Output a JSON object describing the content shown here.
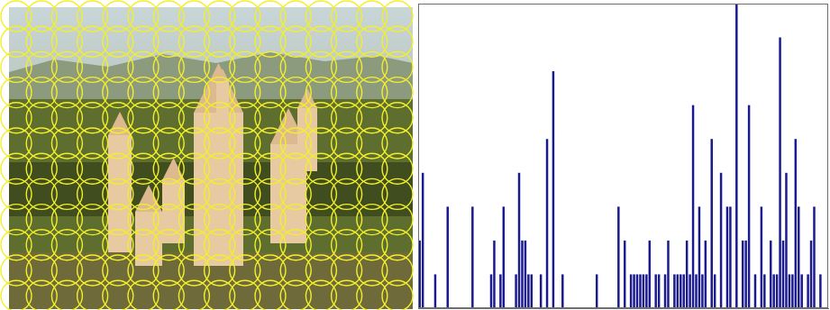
{
  "chart_data": {
    "type": "histogram",
    "color": "#1a1a8e",
    "grid": false,
    "tick_labels": false,
    "xlim": [
      0,
      132
    ],
    "ylim": [
      0,
      9
    ],
    "bins": [
      0,
      1,
      2,
      3,
      4,
      5,
      6,
      7,
      8,
      9,
      10,
      11,
      12,
      13,
      14,
      15,
      16,
      17,
      18,
      19,
      20,
      21,
      22,
      23,
      24,
      25,
      26,
      27,
      28,
      29,
      30,
      31,
      32,
      33,
      34,
      35,
      36,
      37,
      38,
      39,
      40,
      41,
      42,
      43,
      44,
      45,
      46,
      47,
      48,
      49,
      50,
      51,
      52,
      53,
      54,
      55,
      56,
      57,
      58,
      59,
      60,
      61,
      62,
      63,
      64,
      65,
      66,
      67,
      68,
      69,
      70,
      71,
      72,
      73,
      74,
      75,
      76,
      77,
      78,
      79,
      80,
      81,
      82,
      83,
      84,
      85,
      86,
      87,
      88,
      89,
      90,
      91,
      92,
      93,
      94,
      95,
      96,
      97,
      98,
      99,
      100,
      101,
      102,
      103,
      104,
      105,
      106,
      107,
      108,
      109,
      110,
      111,
      112,
      113,
      114,
      115,
      116,
      117,
      118,
      119,
      120,
      121,
      122,
      123,
      124,
      125,
      126,
      127,
      128,
      129,
      130,
      131,
      132
    ],
    "values": [
      2,
      4,
      0,
      0,
      0,
      1,
      0,
      0,
      0,
      3,
      0,
      0,
      0,
      0,
      0,
      0,
      0,
      3,
      0,
      0,
      0,
      0,
      0,
      1,
      2,
      0,
      1,
      3,
      0,
      0,
      0,
      1,
      4,
      2,
      2,
      1,
      1,
      0,
      0,
      1,
      0,
      5,
      0,
      7,
      0,
      0,
      1,
      0,
      0,
      0,
      0,
      0,
      0,
      0,
      0,
      0,
      0,
      1,
      0,
      0,
      0,
      0,
      0,
      0,
      3,
      0,
      2,
      0,
      1,
      1,
      1,
      1,
      1,
      1,
      2,
      0,
      1,
      1,
      0,
      1,
      2,
      0,
      1,
      1,
      1,
      1,
      2,
      1,
      6,
      1,
      3,
      1,
      2,
      0,
      5,
      1,
      0,
      4,
      0,
      3,
      3,
      0,
      9,
      0,
      2,
      2,
      6,
      0,
      1,
      0,
      3,
      1,
      0,
      2,
      1,
      1,
      8,
      2,
      4,
      1,
      1,
      5,
      3,
      1,
      0,
      1,
      2,
      3,
      0,
      1,
      0,
      0
    ]
  }
}
